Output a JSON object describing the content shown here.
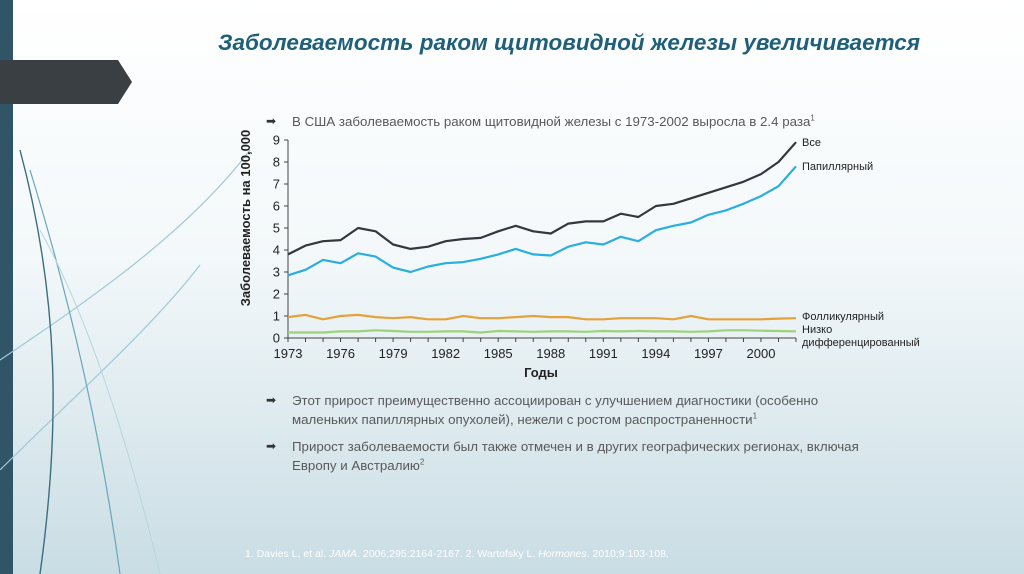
{
  "slide": {
    "title": "Заболеваемость раком щитовидной железы увеличивается",
    "bullet1": {
      "text": "В США заболеваемость раком щитовидной железы с 1973-2002 выросла в 2.4 раза",
      "sup": "1"
    },
    "bullet2": {
      "line1": "Этот прирост преимущественно ассоциирован с улучшением диагностики (особенно",
      "line2": "маленьких папиллярных опухолей), нежели с ростом распространенности",
      "sup": "1"
    },
    "bullet3": {
      "line1": "Прирост заболеваемости был также отмечен и в других географических регионах, включая",
      "line2": "Европу и Австралию",
      "sup": "2"
    },
    "references": {
      "part1": "1. Davies L, et al. ",
      "journal1": "JAMA",
      "part2": ". 2006;295:2164-2167. 2. Wartofsky L. ",
      "journal2": "Hormones",
      "part3": ". 2010;9:103-108."
    },
    "bullet_marker": "➡",
    "colors": {
      "title": "#1f5f7a",
      "band": "#2f5566",
      "arrow": "#3a3f44"
    }
  },
  "chart_data": {
    "type": "line",
    "xlabel": "Годы",
    "ylabel": "Заболеваемость на 100,000",
    "xlim": [
      1973,
      2002
    ],
    "ylim": [
      0,
      9
    ],
    "x_ticks": [
      1973,
      1976,
      1979,
      1982,
      1985,
      1988,
      1991,
      1994,
      1997,
      2000
    ],
    "y_ticks": [
      0,
      1,
      2,
      3,
      4,
      5,
      6,
      7,
      8,
      9
    ],
    "x": [
      1973,
      1974,
      1975,
      1976,
      1977,
      1978,
      1979,
      1980,
      1981,
      1982,
      1983,
      1984,
      1985,
      1986,
      1987,
      1988,
      1989,
      1990,
      1991,
      1992,
      1993,
      1994,
      1995,
      1996,
      1997,
      1998,
      1999,
      2000,
      2001,
      2002
    ],
    "series": [
      {
        "name": "Все",
        "color": "#33383d",
        "values": [
          3.8,
          4.2,
          4.4,
          4.45,
          5.0,
          4.85,
          4.25,
          4.05,
          4.15,
          4.4,
          4.5,
          4.55,
          4.85,
          5.1,
          4.85,
          4.75,
          5.2,
          5.3,
          5.3,
          5.65,
          5.5,
          6.0,
          6.1,
          6.35,
          6.6,
          6.85,
          7.1,
          7.45,
          8.0,
          8.9
        ]
      },
      {
        "name": "Папиллярный",
        "color": "#29aee0",
        "values": [
          2.85,
          3.1,
          3.55,
          3.4,
          3.85,
          3.7,
          3.2,
          3.0,
          3.25,
          3.4,
          3.45,
          3.6,
          3.8,
          4.05,
          3.8,
          3.75,
          4.15,
          4.35,
          4.25,
          4.6,
          4.4,
          4.9,
          5.1,
          5.25,
          5.6,
          5.8,
          6.1,
          6.45,
          6.9,
          7.8
        ]
      },
      {
        "name": "Фолликулярный",
        "color": "#e3a23a",
        "values": [
          0.95,
          1.05,
          0.85,
          1.0,
          1.05,
          0.95,
          0.9,
          0.95,
          0.85,
          0.85,
          1.0,
          0.9,
          0.9,
          0.95,
          1.0,
          0.95,
          0.95,
          0.85,
          0.85,
          0.9,
          0.9,
          0.9,
          0.85,
          1.0,
          0.85,
          0.85,
          0.85,
          0.85,
          0.88,
          0.9
        ]
      },
      {
        "name": "Низко дифференцированный",
        "label_lines": [
          "Низко",
          "дифференцированный"
        ],
        "color": "#9dd17a",
        "values": [
          0.25,
          0.25,
          0.25,
          0.3,
          0.3,
          0.35,
          0.32,
          0.28,
          0.28,
          0.3,
          0.3,
          0.25,
          0.32,
          0.3,
          0.28,
          0.3,
          0.3,
          0.28,
          0.32,
          0.3,
          0.32,
          0.3,
          0.3,
          0.28,
          0.3,
          0.35,
          0.35,
          0.33,
          0.32,
          0.3
        ]
      }
    ]
  }
}
